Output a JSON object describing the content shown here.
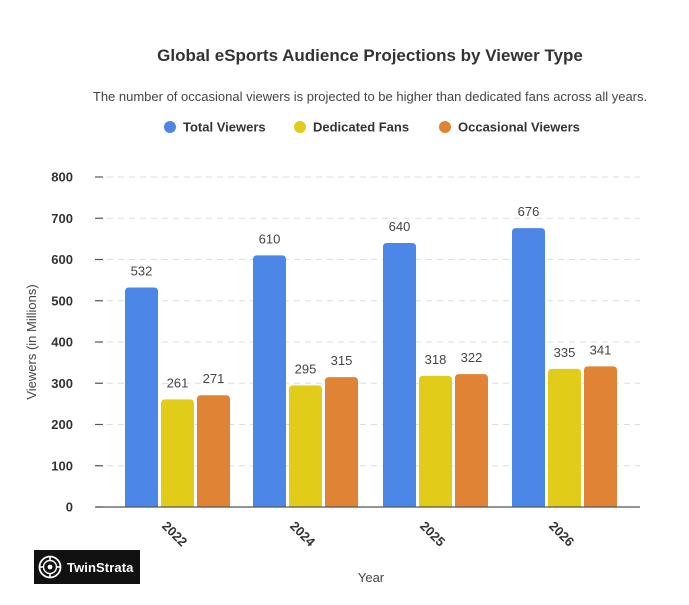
{
  "brand": {
    "name": "TwinStrata"
  },
  "colors": {
    "total": "#4c86e6",
    "dedicated": "#e2cc1a",
    "occasional": "#e08334"
  },
  "chart_data": {
    "type": "bar",
    "title": "Global eSports Audience Projections by Viewer Type",
    "subtitle": "The number of occasional viewers is projected to be higher than dedicated fans across all years.",
    "xlabel": "Year",
    "ylabel": "Viewers (in Millions)",
    "categories": [
      "2022",
      "2024",
      "2025",
      "2026"
    ],
    "ylim": [
      0,
      800
    ],
    "yticks": [
      0,
      100,
      200,
      300,
      400,
      500,
      600,
      700,
      800
    ],
    "grid": true,
    "legend_position": "top",
    "series": [
      {
        "name": "Total Viewers",
        "color_key": "total",
        "values": [
          532,
          610,
          640,
          676
        ]
      },
      {
        "name": "Dedicated Fans",
        "color_key": "dedicated",
        "values": [
          261,
          295,
          318,
          335
        ]
      },
      {
        "name": "Occasional Viewers",
        "color_key": "occasional",
        "values": [
          271,
          315,
          322,
          341
        ]
      }
    ]
  }
}
